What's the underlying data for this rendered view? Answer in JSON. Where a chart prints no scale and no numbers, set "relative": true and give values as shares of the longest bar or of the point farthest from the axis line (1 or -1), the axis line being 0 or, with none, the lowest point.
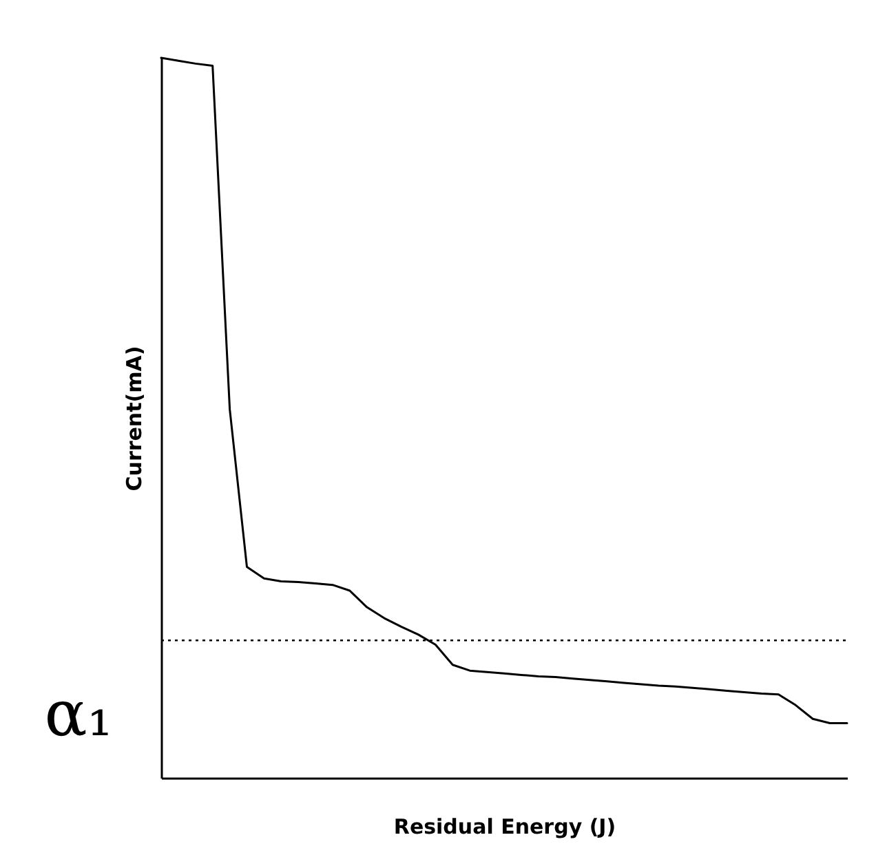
{
  "chart_data": {
    "type": "line",
    "xlabel": "Residual Energy (J)",
    "ylabel": "Current(mA)",
    "relative": true,
    "grid": false,
    "categories": [
      null,
      null,
      null,
      null,
      null,
      null,
      null,
      null,
      null,
      null,
      null,
      null,
      null,
      null,
      null,
      null,
      null,
      null,
      null,
      null,
      null,
      null,
      null,
      null,
      null,
      null,
      null,
      null,
      null,
      null,
      null,
      null,
      null,
      null,
      null,
      null,
      null,
      null,
      null,
      null,
      null
    ],
    "series": [
      {
        "color": "#000000",
        "values": [
          1.0,
          0.996,
          0.992,
          0.989,
          0.512,
          0.293,
          0.277,
          0.273,
          0.272,
          0.27,
          0.268,
          0.26,
          0.237,
          0.222,
          0.21,
          0.199,
          0.185,
          0.157,
          0.149,
          0.147,
          0.145,
          0.143,
          0.141,
          0.14,
          0.138,
          0.136,
          0.134,
          0.132,
          0.13,
          0.128,
          0.127,
          0.125,
          0.123,
          0.121,
          0.119,
          0.117,
          0.116,
          0.101,
          0.082,
          0.076,
          0.076
        ]
      }
    ],
    "ref_lines": [
      {
        "axis": "y",
        "value": 0.191,
        "label": "α₁",
        "line_style": "dotted",
        "color": "#000000"
      }
    ]
  }
}
